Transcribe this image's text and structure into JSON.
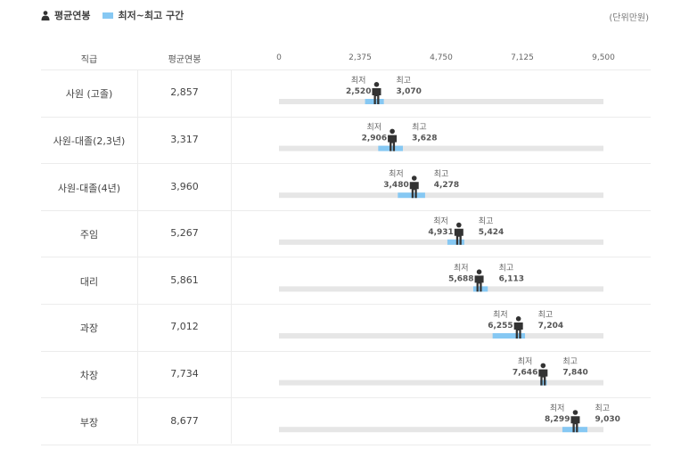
{
  "legend": {
    "avg_label": "평균연봉",
    "range_label": "최저~최고 구간"
  },
  "unit": "(단위만원)",
  "headers": {
    "rank": "직급",
    "avg": "평균연봉"
  },
  "labels": {
    "min": "최저",
    "max": "최고"
  },
  "colors": {
    "range": "#86c8f3",
    "track": "#e6e6e6",
    "person": "#333333"
  },
  "chart_data": {
    "type": "bar",
    "xlim": [
      0,
      9500
    ],
    "ticks": [
      "0",
      "2,375",
      "4,750",
      "7,125",
      "9,500"
    ],
    "tick_values": [
      0,
      2375,
      4750,
      7125,
      9500
    ],
    "rows": [
      {
        "label": "사원 (고졸)",
        "avg": 2857,
        "avg_text": "2,857",
        "min": 2520,
        "min_text": "2,520",
        "max": 3070,
        "max_text": "3,070"
      },
      {
        "label": "사원-대졸(2,3년)",
        "avg": 3317,
        "avg_text": "3,317",
        "min": 2906,
        "min_text": "2,906",
        "max": 3628,
        "max_text": "3,628"
      },
      {
        "label": "사원-대졸(4년)",
        "avg": 3960,
        "avg_text": "3,960",
        "min": 3480,
        "min_text": "3,480",
        "max": 4278,
        "max_text": "4,278"
      },
      {
        "label": "주임",
        "avg": 5267,
        "avg_text": "5,267",
        "min": 4931,
        "min_text": "4,931",
        "max": 5424,
        "max_text": "5,424"
      },
      {
        "label": "대리",
        "avg": 5861,
        "avg_text": "5,861",
        "min": 5688,
        "min_text": "5,688",
        "max": 6113,
        "max_text": "6,113"
      },
      {
        "label": "과장",
        "avg": 7012,
        "avg_text": "7,012",
        "min": 6255,
        "min_text": "6,255",
        "max": 7204,
        "max_text": "7,204"
      },
      {
        "label": "차장",
        "avg": 7734,
        "avg_text": "7,734",
        "min": 7646,
        "min_text": "7,646",
        "max": 7840,
        "max_text": "7,840"
      },
      {
        "label": "부장",
        "avg": 8677,
        "avg_text": "8,677",
        "min": 8299,
        "min_text": "8,299",
        "max": 9030,
        "max_text": "9,030"
      }
    ]
  }
}
